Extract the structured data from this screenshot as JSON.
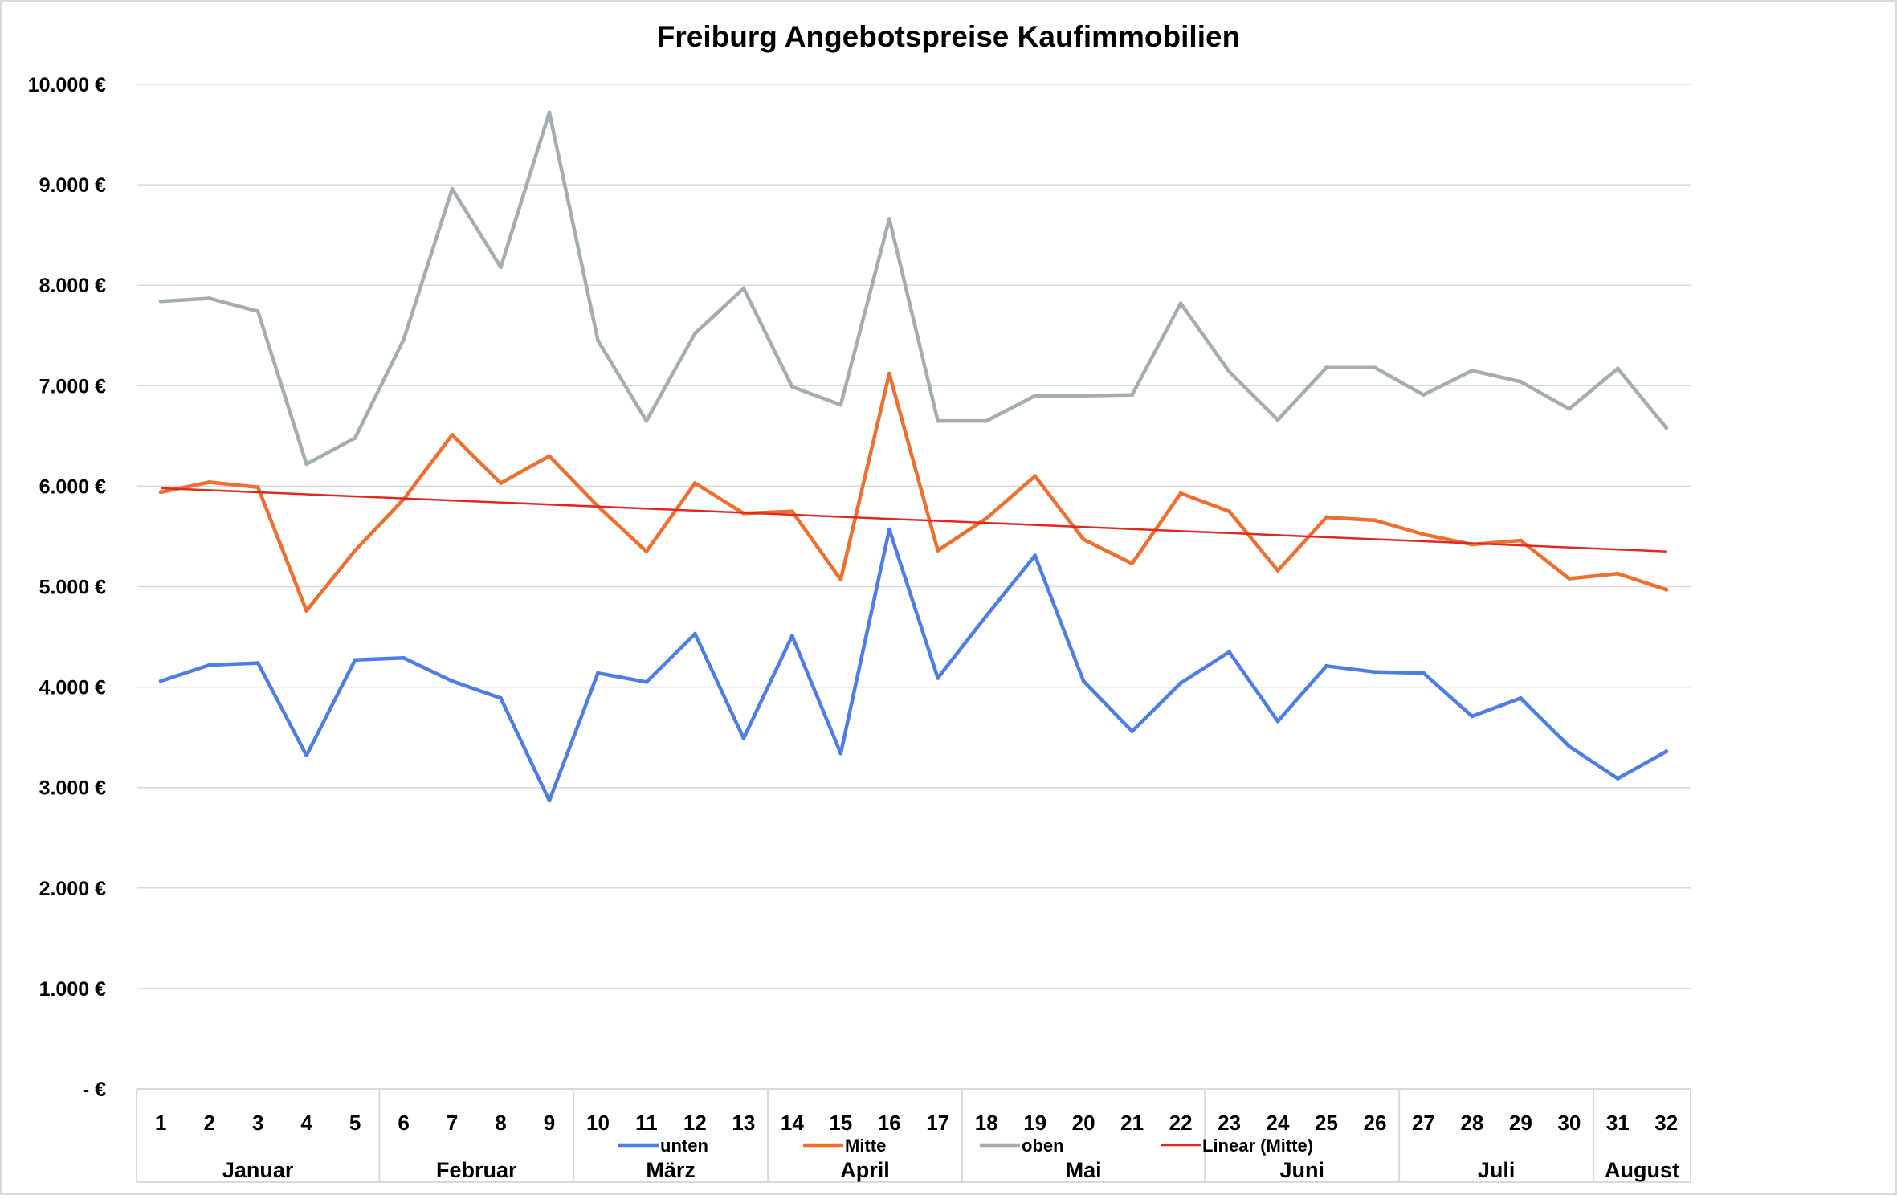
{
  "chart_data": {
    "type": "line",
    "title": "Freiburg Angebotspreise Kaufimmobilien",
    "x": [
      "1",
      "2",
      "3",
      "4",
      "5",
      "6",
      "7",
      "8",
      "9",
      "10",
      "11",
      "12",
      "13",
      "14",
      "15",
      "16",
      "17",
      "18",
      "19",
      "20",
      "21",
      "22",
      "23",
      "24",
      "25",
      "26",
      "27",
      "28",
      "29",
      "30",
      "31",
      "32"
    ],
    "months": [
      {
        "name": "Januar",
        "from": 1,
        "to": 5
      },
      {
        "name": "Februar",
        "from": 6,
        "to": 9
      },
      {
        "name": "März",
        "from": 10,
        "to": 13
      },
      {
        "name": "April",
        "from": 14,
        "to": 17
      },
      {
        "name": "Mai",
        "from": 18,
        "to": 22
      },
      {
        "name": "Juni",
        "from": 23,
        "to": 26
      },
      {
        "name": "Juli",
        "from": 27,
        "to": 30
      },
      {
        "name": "August",
        "from": 31,
        "to": 32
      }
    ],
    "series": [
      {
        "name": "unten",
        "color": "#4d7ee6",
        "values": [
          4060,
          4220,
          4240,
          3320,
          4270,
          4290,
          4060,
          3890,
          2870,
          4140,
          4050,
          4530,
          3490,
          4510,
          3340,
          5570,
          4090,
          4710,
          5310,
          4060,
          3560,
          4040,
          4350,
          3660,
          4210,
          4150,
          4140,
          3710,
          3890,
          3410,
          3090,
          3360
        ]
      },
      {
        "name": "Mitte",
        "color": "#ef6f2e",
        "values": [
          5940,
          6040,
          5990,
          4760,
          5360,
          5870,
          6510,
          6030,
          6300,
          5800,
          5350,
          6030,
          5730,
          5750,
          5070,
          7120,
          5360,
          5680,
          6100,
          5470,
          5230,
          5930,
          5750,
          5160,
          5690,
          5660,
          5520,
          5420,
          5460,
          5080,
          5130,
          4970
        ]
      },
      {
        "name": "oben",
        "color": "#a3adb2",
        "values": [
          7840,
          7870,
          7740,
          6220,
          6480,
          7460,
          8960,
          8180,
          9720,
          7450,
          6650,
          7520,
          7970,
          6990,
          6810,
          8660,
          6650,
          6650,
          6900,
          6900,
          6910,
          7820,
          7140,
          6660,
          7180,
          7180,
          6910,
          7150,
          7040,
          6770,
          7170,
          6580
        ]
      }
    ],
    "trendline": {
      "name": "Linear (Mitte)",
      "of": "Mitte",
      "color": "#e02a1f",
      "start": 5980,
      "end": 5350
    },
    "y_ticks": [
      {
        "value": 0,
        "label": " -  €"
      },
      {
        "value": 1000,
        "label": "1.000 €"
      },
      {
        "value": 2000,
        "label": "2.000 €"
      },
      {
        "value": 3000,
        "label": "3.000 €"
      },
      {
        "value": 4000,
        "label": "4.000 €"
      },
      {
        "value": 5000,
        "label": "5.000 €"
      },
      {
        "value": 6000,
        "label": "6.000 €"
      },
      {
        "value": 7000,
        "label": "7.000 €"
      },
      {
        "value": 8000,
        "label": "8.000 €"
      },
      {
        "value": 9000,
        "label": "9.000 €"
      },
      {
        "value": 10000,
        "label": "10.000 €"
      }
    ],
    "ylim": [
      0,
      10000
    ],
    "grid": true,
    "legend": {
      "placement": "bottom",
      "entries": [
        "unten",
        "Mitte",
        "oben",
        "Linear (Mitte)"
      ]
    }
  }
}
